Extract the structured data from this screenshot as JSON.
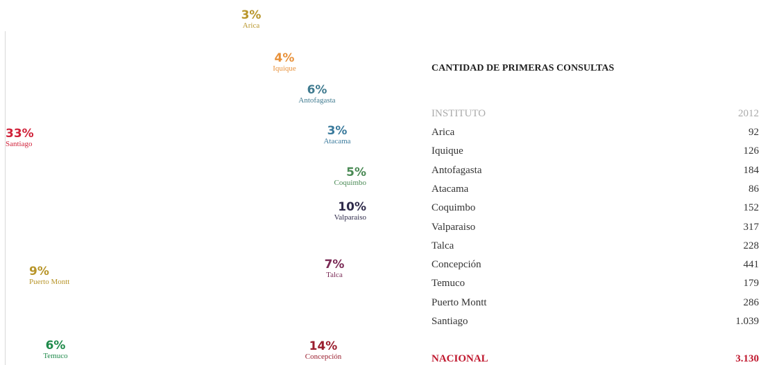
{
  "regions": [
    {
      "percent": "3%",
      "name": "Arica",
      "color": "#b8952a"
    },
    {
      "percent": "4%",
      "name": "Iquique",
      "color": "#e8913a"
    },
    {
      "percent": "6%",
      "name": "Antofagasta",
      "color": "#3f7a8f"
    },
    {
      "percent": "3%",
      "name": "Atacama",
      "color": "#3a7a9c"
    },
    {
      "percent": "5%",
      "name": "Coquimbo",
      "color": "#4a8a55"
    },
    {
      "percent": "10%",
      "name": "Valparaiso",
      "color": "#2e2a4a"
    },
    {
      "percent": "7%",
      "name": "Talca",
      "color": "#7a2a55"
    },
    {
      "percent": "14%",
      "name": "Concepción",
      "color": "#9a1e2e"
    },
    {
      "percent": "6%",
      "name": "Temuco",
      "color": "#1e8a4a"
    },
    {
      "percent": "9%",
      "name": "Puerto Montt",
      "color": "#b8952a"
    },
    {
      "percent": "33%",
      "name": "Santiago",
      "color": "#d0223a"
    }
  ],
  "table": {
    "title": "CANTIDAD DE PRIMERAS CONSULTAS",
    "header": [
      "INSTITUTO",
      "2012"
    ],
    "rows": [
      [
        "Arica",
        "92"
      ],
      [
        "Iquique",
        "126"
      ],
      [
        "Antofagasta",
        "184"
      ],
      [
        "Atacama",
        "86"
      ],
      [
        "Coquimbo",
        "152"
      ],
      [
        "Valparaiso",
        "317"
      ],
      [
        "Talca",
        "228"
      ],
      [
        "Concepción",
        "441"
      ],
      [
        "Temuco",
        "179"
      ],
      [
        "Puerto Montt",
        "286"
      ],
      [
        "Santiago",
        "1.039"
      ]
    ],
    "total": [
      "NACIONAL",
      "3.130"
    ]
  }
}
